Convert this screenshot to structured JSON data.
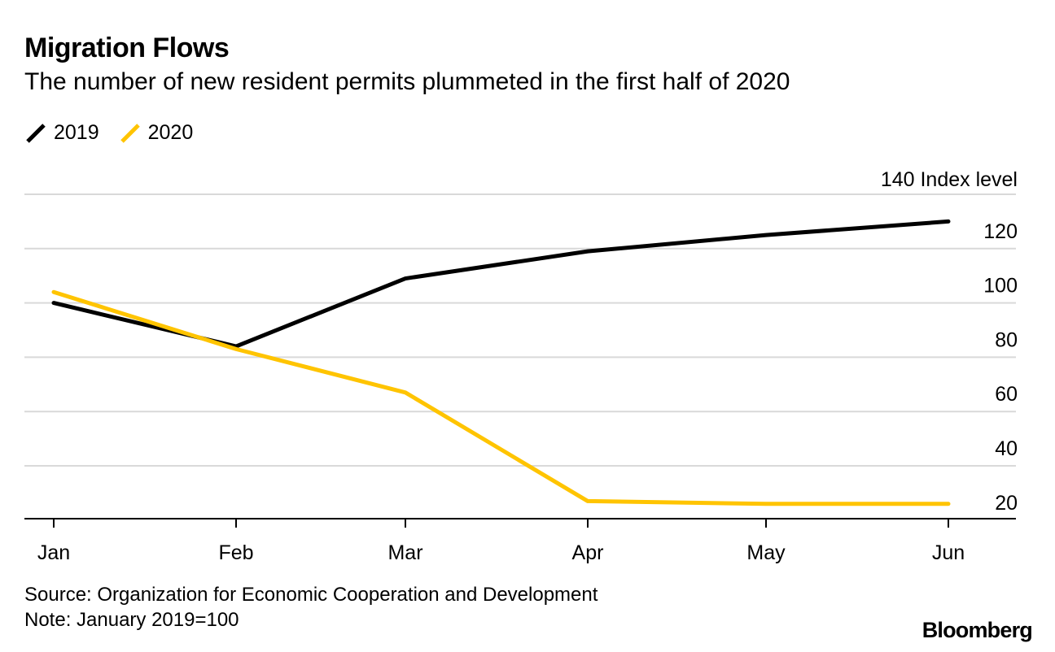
{
  "title": "Migration Flows",
  "subtitle": "The number of new resident permits plummeted in the first half of 2020",
  "legend": [
    {
      "label": "2019",
      "color": "#000000"
    },
    {
      "label": "2020",
      "color": "#FFC400"
    }
  ],
  "source": "Source: Organization for Economic Cooperation and Development",
  "note": "Note: January 2019=100",
  "brand": "Bloomberg",
  "chart_data": {
    "type": "line",
    "title": "Migration Flows",
    "ylabel": "Index level",
    "categories": [
      "Jan",
      "Feb",
      "Mar",
      "Apr",
      "May",
      "Jun"
    ],
    "ylim": [
      20,
      140
    ],
    "yticks": [
      20,
      40,
      60,
      80,
      100,
      120,
      140
    ],
    "ytick_labels": [
      "20",
      "40",
      "60",
      "80",
      "100",
      "120",
      "140 Index level"
    ],
    "y_axis_position": "right",
    "grid": true,
    "series": [
      {
        "name": "2019",
        "color": "#000000",
        "values": [
          100,
          84,
          109,
          119,
          125,
          130
        ]
      },
      {
        "name": "2020",
        "color": "#FFC400",
        "values": [
          104,
          83,
          67,
          27,
          26,
          26
        ]
      }
    ]
  }
}
